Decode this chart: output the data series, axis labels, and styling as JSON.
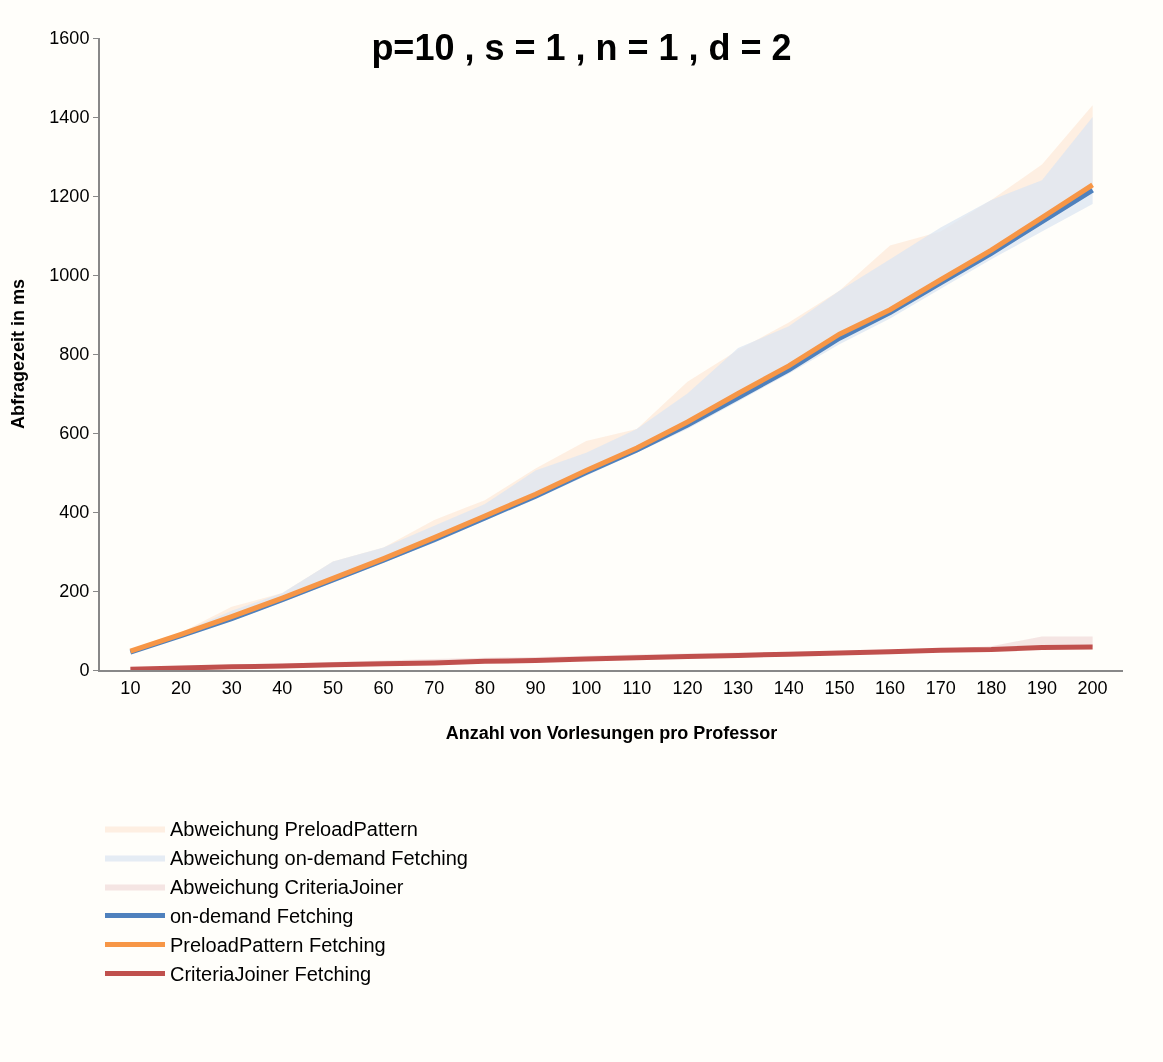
{
  "chart_data": {
    "type": "line",
    "title": "p=10 , s = 1 , n = 1 , d = 2",
    "xlabel": "Anzahl von Vorlesungen pro Professor",
    "ylabel": "Abfragezeit in ms",
    "categories": [
      "10",
      "20",
      "30",
      "40",
      "50",
      "60",
      "70",
      "80",
      "90",
      "100",
      "110",
      "120",
      "130",
      "140",
      "150",
      "160",
      "170",
      "180",
      "190",
      "200"
    ],
    "ylim": [
      0,
      1600
    ],
    "yticks": [
      0,
      200,
      400,
      600,
      800,
      1000,
      1200,
      1400,
      1600
    ],
    "grid": false,
    "legend": "bottom",
    "line_style": "solid",
    "marker": "none",
    "series": [
      {
        "name": "Abweichung PreloadPattern",
        "color": "#fde9d9",
        "values": [
          null,
          null,
          null,
          null,
          null,
          null,
          null,
          null,
          null,
          null,
          null,
          null,
          null,
          null,
          null,
          null,
          null,
          null,
          null,
          null
        ],
        "lower": [
          44,
          88,
          132,
          178,
          228,
          278,
          330,
          385,
          440,
          500,
          557,
          620,
          690,
          760,
          840,
          905,
          980,
          1055,
          1135,
          1215
        ],
        "upper": [
          48,
          95,
          160,
          195,
          275,
          310,
          380,
          430,
          510,
          580,
          610,
          730,
          810,
          880,
          960,
          1075,
          1110,
          1190,
          1280,
          1430
        ]
      },
      {
        "name": "Abweichung on-demand Fetching",
        "color": "#dce6f2",
        "values": [
          null,
          null,
          null,
          null,
          null,
          null,
          null,
          null,
          null,
          null,
          null,
          null,
          null,
          null,
          null,
          null,
          null,
          null,
          null,
          null
        ],
        "lower": [
          42,
          85,
          125,
          172,
          222,
          272,
          322,
          378,
          432,
          492,
          550,
          610,
          680,
          750,
          825,
          890,
          965,
          1040,
          1110,
          1180
        ],
        "upper": [
          48,
          95,
          150,
          195,
          275,
          310,
          365,
          420,
          505,
          550,
          610,
          700,
          815,
          870,
          960,
          1040,
          1120,
          1190,
          1240,
          1400
        ]
      },
      {
        "name": "Abweichung CriteriaJoiner",
        "color": "#f2dcdb",
        "values": [
          null,
          null,
          null,
          null,
          null,
          null,
          null,
          null,
          null,
          null,
          null,
          null,
          null,
          null,
          null,
          null,
          null,
          null,
          null,
          null
        ],
        "lower": [
          2,
          5,
          8,
          10,
          13,
          16,
          18,
          22,
          24,
          28,
          31,
          34,
          37,
          40,
          43,
          46,
          50,
          52,
          57,
          58
        ],
        "upper": [
          3,
          7,
          11,
          16,
          20,
          24,
          28,
          31,
          33,
          36,
          39,
          42,
          44,
          46,
          48,
          51,
          54,
          60,
          85,
          85
        ]
      },
      {
        "name": "on-demand Fetching",
        "color": "#4f81bd",
        "values": [
          45,
          87,
          130,
          178,
          228,
          278,
          330,
          385,
          440,
          500,
          557,
          620,
          690,
          760,
          840,
          905,
          980,
          1055,
          1135,
          1215
        ]
      },
      {
        "name": "PreloadPattern Fetching",
        "color": "#f79646",
        "values": [
          48,
          90,
          135,
          182,
          232,
          282,
          335,
          390,
          445,
          505,
          562,
          628,
          700,
          770,
          850,
          912,
          988,
          1063,
          1145,
          1228
        ]
      },
      {
        "name": "CriteriaJoiner Fetching",
        "color": "#c0504d",
        "values": [
          2,
          5,
          8,
          10,
          13,
          16,
          18,
          22,
          24,
          28,
          31,
          34,
          37,
          40,
          43,
          46,
          50,
          52,
          57,
          58
        ]
      }
    ]
  }
}
